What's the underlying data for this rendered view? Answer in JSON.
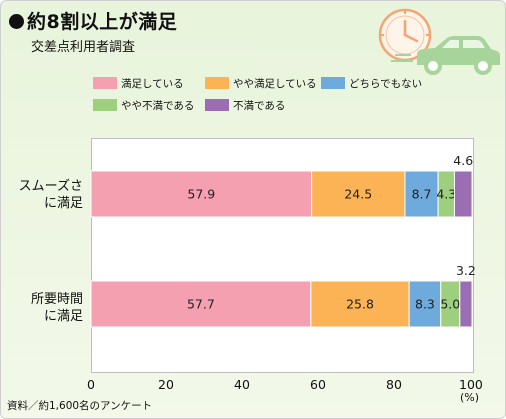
{
  "header": {
    "title": "約8割以上が満足",
    "subtitle": "交差点利用者調査"
  },
  "illustration": {
    "clock_icon": "clock-icon",
    "car_icon": "car-icon",
    "clock_color": "#f4a574",
    "car_color": "#a6d49a"
  },
  "legend": [
    {
      "label": "満足している",
      "color": "#f4a0b1"
    },
    {
      "label": "やや満足している",
      "color": "#fbb356"
    },
    {
      "label": "どちらでもない",
      "color": "#6eaadc"
    },
    {
      "label": "やや不満である",
      "color": "#9ecf7e"
    },
    {
      "label": "不満である",
      "color": "#9b6eb3"
    }
  ],
  "chart_data": {
    "type": "bar",
    "orientation": "horizontal",
    "stacked": true,
    "categories": [
      "スムーズさに満足",
      "所要時間に満足"
    ],
    "category_lines": [
      [
        "スムーズさ",
        "に満足"
      ],
      [
        "所要時間",
        "に満足"
      ]
    ],
    "series": [
      {
        "name": "満足している",
        "values": [
          57.9,
          57.7
        ]
      },
      {
        "name": "やや満足している",
        "values": [
          24.5,
          25.8
        ]
      },
      {
        "name": "どちらでもない",
        "values": [
          8.7,
          8.3
        ]
      },
      {
        "name": "やや不満である",
        "values": [
          4.3,
          5.0
        ]
      },
      {
        "name": "不満である",
        "values": [
          4.6,
          3.2
        ]
      }
    ],
    "xlim": [
      0,
      100
    ],
    "xticks": [
      "0",
      "20",
      "40",
      "60",
      "80",
      "100"
    ],
    "x_unit": "(%)",
    "grid": false,
    "legend_position": "top"
  },
  "footer": {
    "source": "資料／約1,600名のアンケート"
  }
}
